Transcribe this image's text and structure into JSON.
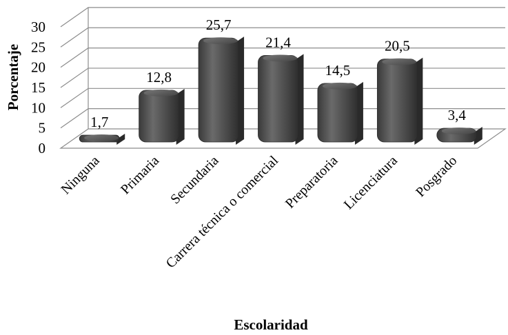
{
  "chart_data": {
    "type": "bar",
    "style": "3d-cylinder",
    "categories": [
      "Ninguna",
      "Primaria",
      "Secundaria",
      "Carrera técnica o comercial",
      "Preparatoria",
      "Licenciatura",
      "Posgrado"
    ],
    "values": [
      1.7,
      12.8,
      25.7,
      21.4,
      14.5,
      20.5,
      3.4
    ],
    "data_labels": [
      "1,7",
      "12,8",
      "25,7",
      "21,4",
      "14,5",
      "20,5",
      "3,4"
    ],
    "xlabel": "Escolaridad",
    "ylabel": "Porcentaje",
    "ylim": [
      0,
      30
    ],
    "yticks": [
      0,
      5,
      10,
      15,
      20,
      25,
      30
    ],
    "grid": true,
    "legend": "none",
    "bar_color": "#555555"
  }
}
